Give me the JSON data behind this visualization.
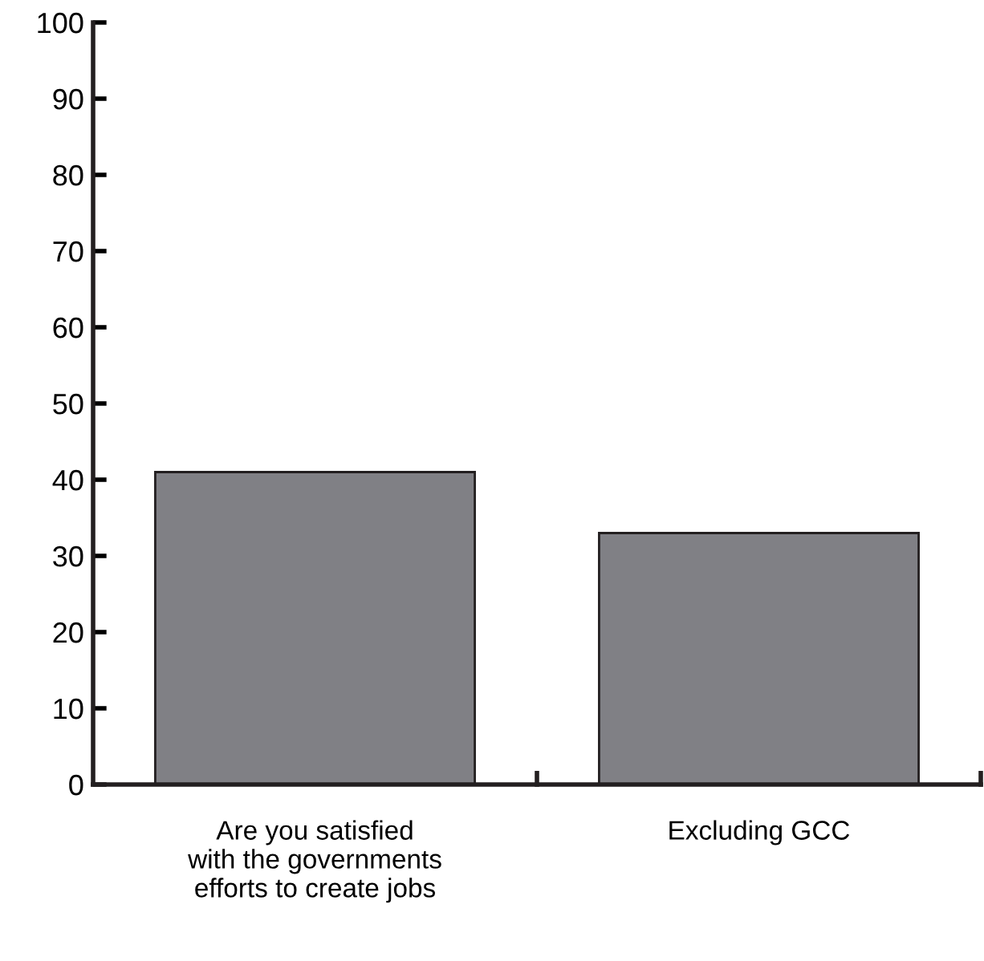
{
  "chart_data": {
    "type": "bar",
    "categories": [
      "Are you satisfied\nwith the governments\nefforts to create jobs",
      "Excluding GCC"
    ],
    "values": [
      41,
      33
    ],
    "color": "#808085",
    "ylim": [
      0,
      100
    ],
    "yticks": [
      0,
      10,
      20,
      30,
      40,
      50,
      60,
      70,
      80,
      90,
      100
    ],
    "grid": false
  }
}
